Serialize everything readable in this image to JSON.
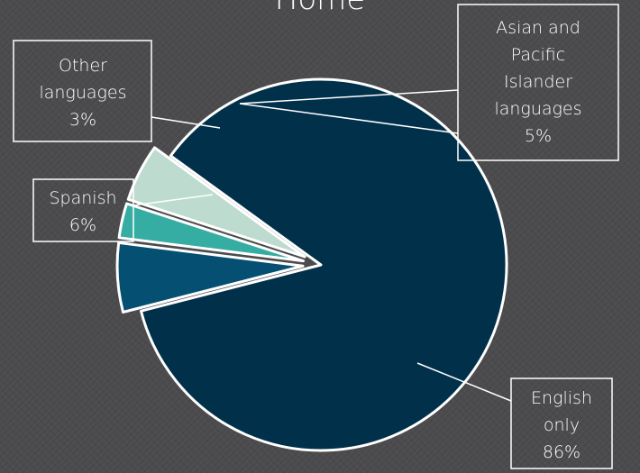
{
  "chart_data": {
    "type": "pie",
    "title": "Home",
    "slices": [
      {
        "name": "English only",
        "value": 86,
        "pct_label": "86%",
        "color": "#01304a"
      },
      {
        "name": "Spanish",
        "value": 6,
        "pct_label": "6%",
        "color": "#044f72"
      },
      {
        "name": "Other languages",
        "value": 3,
        "pct_label": "3%",
        "color": "#36ada3"
      },
      {
        "name": "Asian and Pacific Islander languages",
        "value": 5,
        "pct_label": "5%",
        "color": "#bddbcf"
      }
    ],
    "legend": "none",
    "slice_border_color": "#ffffff"
  }
}
